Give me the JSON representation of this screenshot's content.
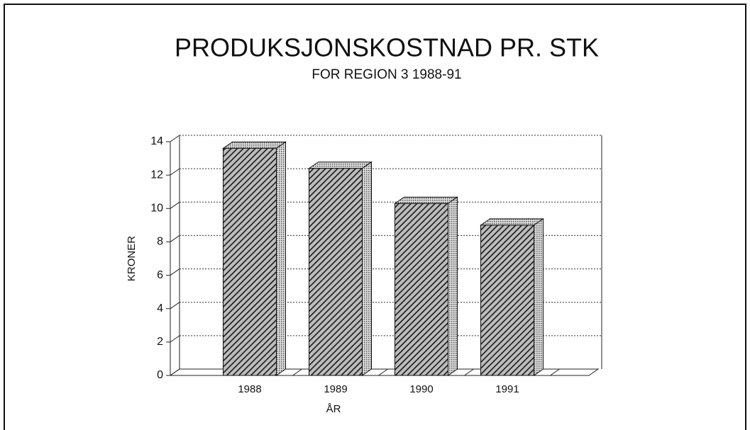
{
  "chart_data": {
    "type": "bar3d",
    "title": "PRODUKSJONSKOSTNAD PR. STK",
    "subtitle": "FOR REGION 3 1988-91",
    "x_label": "ÅR",
    "y_label": "KRONER",
    "categories": [
      "1988",
      "1989",
      "1990",
      "1991"
    ],
    "values": [
      13.6,
      12.4,
      10.3,
      9.0
    ],
    "ylim": [
      0,
      14
    ],
    "yticks": [
      0,
      2,
      4,
      6,
      8,
      10,
      12,
      14
    ],
    "grid": true
  }
}
